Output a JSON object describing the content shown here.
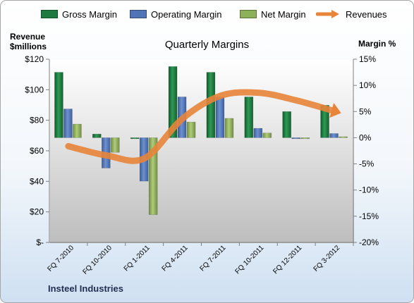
{
  "chart_data": {
    "type": "bar",
    "title": "Quarterly Margins",
    "left_axis_label_line1": "Revenue",
    "left_axis_label_line2": "$millions",
    "right_axis_label": "Margin %",
    "footer": "Insteel Industries",
    "categories": [
      "FQ 7-2010",
      "FQ 10-2010",
      "FQ 1-2011",
      "FQ 4-2011",
      "FQ 7-2011",
      "FQ 10-2011",
      "FQ 12-2011",
      "FQ 3-2012"
    ],
    "left_axis": {
      "min": 0,
      "max": 120,
      "ticks": [
        "$-",
        "$20",
        "$40",
        "$60",
        "$80",
        "$100",
        "$120"
      ],
      "tick_values": [
        0,
        20,
        40,
        60,
        80,
        100,
        120
      ]
    },
    "right_axis": {
      "min": -20,
      "max": 15,
      "ticks": [
        "-20%",
        "-15%",
        "-10%",
        "-5%",
        "0%",
        "5%",
        "10%",
        "15%"
      ],
      "tick_values": [
        -20,
        -15,
        -10,
        -5,
        0,
        5,
        10,
        15
      ]
    },
    "series": [
      {
        "name": "Gross Margin",
        "axis": "right",
        "color": "#1f7a3f",
        "values": [
          12.5,
          0.7,
          0.0,
          13.6,
          12.5,
          7.8,
          5.0,
          6.2
        ]
      },
      {
        "name": "Operating Margin",
        "axis": "right",
        "color": "#4f73b4",
        "values": [
          5.5,
          -5.8,
          -8.3,
          7.8,
          7.8,
          1.8,
          -0.2,
          0.8
        ]
      },
      {
        "name": "Net Margin",
        "axis": "right",
        "color": "#8eb05a",
        "values": [
          2.6,
          -2.8,
          -14.7,
          3.0,
          3.7,
          0.9,
          -0.2,
          0.2
        ]
      },
      {
        "name": "Revenues",
        "axis": "left",
        "color": "#e8843a",
        "values": [
          63,
          57,
          55,
          81,
          96,
          98,
          93,
          86
        ]
      }
    ],
    "grid": false,
    "legend_position": "top"
  }
}
